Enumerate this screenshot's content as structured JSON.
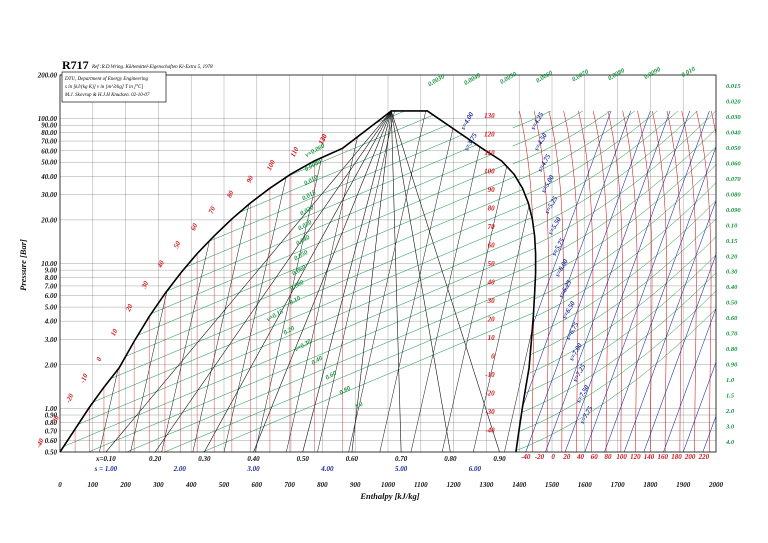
{
  "chart_data": {
    "type": "line",
    "title": "R717",
    "subtitle": "Ref :R.D.Wring. Kältemittel-Eigenschaften Ki-Extra 5, 1978",
    "info_lines": [
      "DTU, Department of Energy Engineering",
      "s in [kJ/(kg K)]   v in [m^3/kg]   T in [°C]",
      "M.J. Skovrup & H.J.H Knudsen. 02-10-07"
    ],
    "xlabel": "Enthalpy [kJ/kg]",
    "ylabel": "Pressure [Bar]",
    "xlim": [
      0,
      2000
    ],
    "ylim": [
      0.5,
      200
    ],
    "y_scale": "log",
    "x_ticks": [
      "0",
      "100",
      "200",
      "300",
      "400",
      "500",
      "600",
      "700",
      "800",
      "900",
      "1000",
      "1100",
      "1200",
      "1300",
      "1400",
      "1500",
      "1600",
      "1700",
      "1800",
      "1900",
      "2000"
    ],
    "y_ticks": [
      "0.50",
      "0.60",
      "0.70",
      "0.80",
      "0.90",
      "1.00",
      "2.00",
      "3.00",
      "4.00",
      "5.00",
      "6.00",
      "7.00",
      "8.00",
      "9.00",
      "10.00",
      "20.00",
      "30.00",
      "40.00",
      "50.00",
      "60.00",
      "70.00",
      "80.00",
      "90.00",
      "100.00",
      "200.00"
    ],
    "right_ticks": [
      "0.015",
      "0.020",
      "0.030",
      "0.040",
      "0.050",
      "0.060",
      "0.070",
      "0.080",
      "0.090",
      "0.10",
      "0.15",
      "0.20",
      "0.30",
      "0.40",
      "0.50",
      "0.60",
      "0.70",
      "0.80",
      "0.90",
      "1.0",
      "1.5",
      "2.0",
      "3.0",
      "4.0"
    ],
    "quality_labels": [
      "x=0.10",
      "0.20",
      "0.30",
      "0.40",
      "0.50",
      "0.60",
      "0.70",
      "0.80",
      "0.90"
    ],
    "entropy_bottom_labels": [
      "s = 1.00",
      "2.00",
      "3.00",
      "4.00",
      "5.00",
      "6.00"
    ],
    "entropy_right_labels": [
      "s=4.25",
      "s=4.50",
      "s=4.75",
      "s=5.00",
      "s=5.25",
      "s=5.50",
      "s=5.75",
      "s=6.00",
      "s=6.25",
      "s=6.50",
      "s=6.75",
      "s=7.00",
      "s=7.25",
      "s=7.50",
      "s=7.75",
      "s=4.00",
      "s=3.75"
    ],
    "temp_left_labels": [
      "-40",
      "-30",
      "-20",
      "-10",
      "0",
      "10",
      "20",
      "30",
      "40",
      "50",
      "60",
      "70",
      "80",
      "90",
      "100",
      "110",
      "120",
      "130"
    ],
    "temp_right_labels": [
      "130",
      "120",
      "110",
      "100",
      "90",
      "80",
      "70",
      "60",
      "50",
      "40",
      "30",
      "20",
      "10",
      "0",
      "-10",
      "-20",
      "-30",
      "-40"
    ],
    "temp_bottom_labels": [
      "-40",
      "-20",
      "0",
      "20",
      "40",
      "60",
      "80",
      "100",
      "120",
      "140",
      "160",
      "180",
      "200",
      "220"
    ],
    "volume_top_labels": [
      "0.0030",
      "0.0040",
      "0.0050",
      "0.0060",
      "0.0070",
      "0.0080",
      "0.0090",
      "0.010"
    ],
    "volume_dome_labels": [
      "v=0.060",
      "0.0080",
      "0.010",
      "0.015",
      "0.020",
      "0.030",
      "0.040",
      "0.050",
      "0.060",
      "0.080",
      "0.10",
      "v=0.15",
      "0.20",
      "v=0.30",
      "0.40",
      "0.60",
      "0.80",
      "1.0"
    ],
    "saturation": {
      "h_liquid": [
        0,
        46,
        90,
        134,
        180,
        226,
        272,
        320,
        368,
        418,
        470,
        524,
        580,
        640,
        704,
        776,
        862,
        1010
      ],
      "h_vapor": [
        1390,
        1400,
        1410,
        1420,
        1430,
        1437,
        1443,
        1447,
        1450,
        1450,
        1447,
        1440,
        1428,
        1410,
        1384,
        1346,
        1286,
        1120
      ],
      "p_bar": [
        0.5,
        0.72,
        1.02,
        1.4,
        1.9,
        2.9,
        4.3,
        6.2,
        8.6,
        11.7,
        15.5,
        20.3,
        26.1,
        33.1,
        41.4,
        51.1,
        62.5,
        112.9
      ]
    },
    "colors": {
      "isotherm": "#d0141a",
      "isochore": "#0f8f3a",
      "isentrope": "#1a2a9a",
      "quality": "#111111",
      "saturation": "#000000",
      "grid": "#7a7a7a"
    },
    "grid": true
  }
}
